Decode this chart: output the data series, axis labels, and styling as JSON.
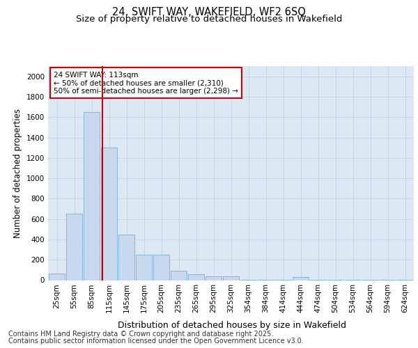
{
  "title_line1": "24, SWIFT WAY, WAKEFIELD, WF2 6SQ",
  "title_line2": "Size of property relative to detached houses in Wakefield",
  "xlabel": "Distribution of detached houses by size in Wakefield",
  "ylabel": "Number of detached properties",
  "categories": [
    "25sqm",
    "55sqm",
    "85sqm",
    "115sqm",
    "145sqm",
    "175sqm",
    "205sqm",
    "235sqm",
    "265sqm",
    "295sqm",
    "325sqm",
    "354sqm",
    "384sqm",
    "414sqm",
    "444sqm",
    "474sqm",
    "504sqm",
    "534sqm",
    "564sqm",
    "594sqm",
    "624sqm"
  ],
  "values": [
    65,
    650,
    1650,
    1300,
    450,
    250,
    250,
    90,
    55,
    35,
    35,
    5,
    5,
    5,
    30,
    5,
    5,
    5,
    5,
    5,
    5
  ],
  "bar_color": "#c8d8ee",
  "bar_edge_color": "#7bafd4",
  "red_line_x": 2.62,
  "annotation_text": "24 SWIFT WAY: 113sqm\n← 50% of detached houses are smaller (2,310)\n50% of semi-detached houses are larger (2,298) →",
  "annotation_box_color": "#ffffff",
  "annotation_box_edge_color": "#cc0000",
  "red_line_color": "#cc0000",
  "ylim": [
    0,
    2100
  ],
  "yticks": [
    0,
    200,
    400,
    600,
    800,
    1000,
    1200,
    1400,
    1600,
    1800,
    2000
  ],
  "grid_color": "#c8d4e8",
  "background_color": "#dde8f5",
  "footer_line1": "Contains HM Land Registry data © Crown copyright and database right 2025.",
  "footer_line2": "Contains public sector information licensed under the Open Government Licence v3.0.",
  "title_fontsize": 10.5,
  "subtitle_fontsize": 9.5,
  "axis_label_fontsize": 8.5,
  "tick_fontsize": 7.5,
  "footer_fontsize": 7.0,
  "annotation_fontsize": 7.5
}
